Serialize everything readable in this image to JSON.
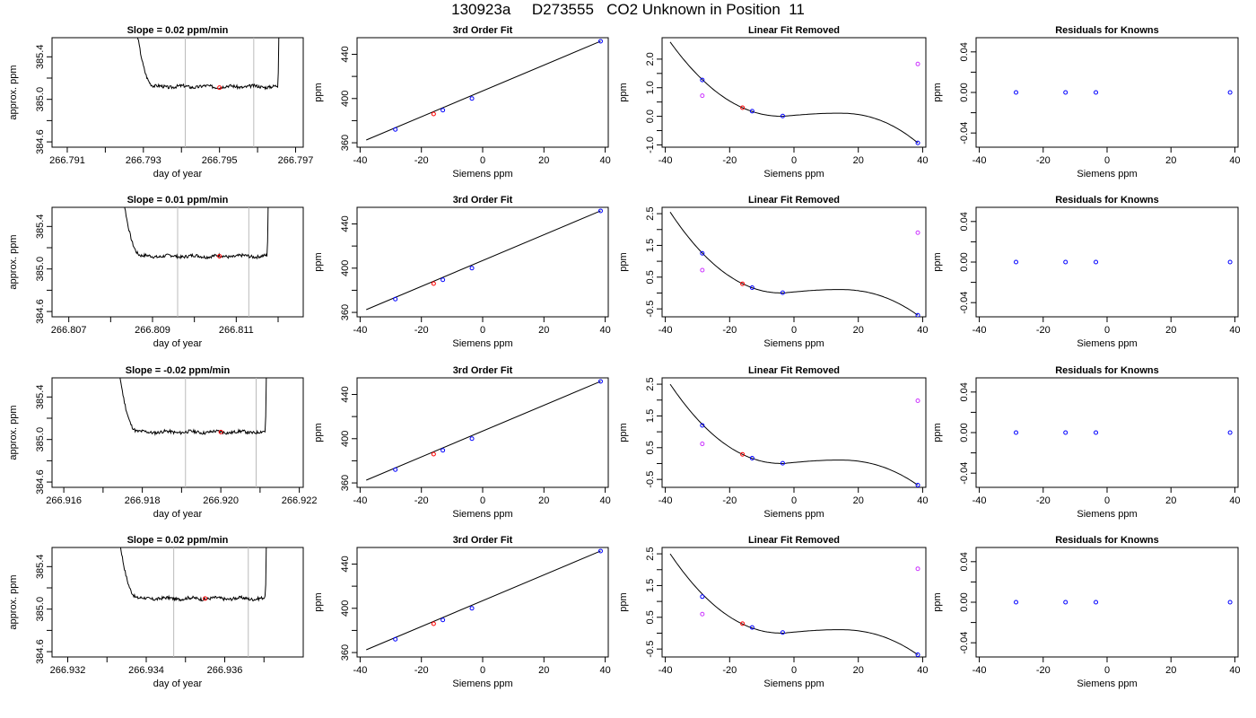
{
  "page_title": "130923a     D273555   CO2 Unknown in Position  11",
  "colors": {
    "trace": "#000000",
    "known": "#0000ff",
    "unknown": "#ff0000",
    "excluded": "#cc33ff",
    "interval_line": "#bbbbbb"
  },
  "chart_data": [
    {
      "type": "line",
      "row": 0,
      "col": 0,
      "title": "Slope =  0.02  ppm/min",
      "xlabel": "day of year",
      "ylabel": "approx. ppm",
      "xlim": [
        266.7906,
        266.7972
      ],
      "ylim": [
        384.55,
        385.58
      ],
      "xticks": [
        266.791,
        266.792,
        266.793,
        266.794,
        266.795,
        266.796,
        266.797
      ],
      "xtick_labels": [
        "266.791",
        "",
        "266.793",
        "",
        "266.795",
        "",
        "266.797"
      ],
      "yticks": [
        384.6,
        384.8,
        385.0,
        385.2,
        385.4
      ],
      "ytick_labels": [
        "384.6",
        "",
        "385.0",
        "",
        "385.4"
      ],
      "trace": {
        "x0": 266.7926,
        "x1": 266.7966,
        "plateau": 385.12,
        "seed": 3
      },
      "vlines": [
        266.7941,
        266.7959
      ],
      "unknown_point": {
        "x": 266.795,
        "y": 385.11
      }
    },
    {
      "type": "scatter",
      "row": 0,
      "col": 1,
      "title": "3rd Order Fit",
      "xlabel": "Siemens ppm",
      "ylabel": "ppm",
      "xlim": [
        -41,
        41
      ],
      "ylim": [
        356,
        455
      ],
      "xticks": [
        -40,
        -20,
        0,
        20,
        40
      ],
      "xtick_labels": [
        "-40",
        "-20",
        "0",
        "20",
        "40"
      ],
      "yticks": [
        360,
        380,
        400,
        420,
        440
      ],
      "ytick_labels": [
        "360",
        "",
        "400",
        "",
        "440"
      ],
      "fit_line": {
        "x0": -38,
        "y0": 362.5,
        "x1": 38.5,
        "y1": 451.8
      },
      "points": [
        {
          "x": -28.5,
          "y": 372.0,
          "role": "known"
        },
        {
          "x": -16,
          "y": 386.0,
          "role": "unknown"
        },
        {
          "x": -13,
          "y": 389.5,
          "role": "known"
        },
        {
          "x": -3.5,
          "y": 400.0,
          "role": "known"
        },
        {
          "x": 38.5,
          "y": 451.8,
          "role": "known"
        }
      ]
    },
    {
      "type": "scatter",
      "row": 0,
      "col": 2,
      "title": "Linear Fit Removed",
      "xlabel": "Siemens ppm",
      "ylabel": "ppm",
      "xlim": [
        -41,
        41
      ],
      "ylim": [
        -1.08,
        2.75
      ],
      "xticks": [
        -40,
        -20,
        0,
        20,
        40
      ],
      "xtick_labels": [
        "-40",
        "-20",
        "0",
        "20",
        "40"
      ],
      "yticks": [
        -1.0,
        -0.5,
        0.0,
        0.5,
        1.0,
        1.5,
        2.0
      ],
      "ytick_labels": [
        "-1.0",
        "0.0",
        "1.0",
        "2.0"
      ],
      "ytick_label_values": [
        -1.0,
        0.0,
        1.0,
        2.0
      ],
      "curve": {
        "x0": -38.5,
        "x1": 38.5,
        "coef": [
          0.0,
          0.0006,
          -0.0015,
          -5e-05
        ],
        "y_at_m38": 2.6
      },
      "points": [
        {
          "x": -28.5,
          "y": 1.27,
          "role": "known"
        },
        {
          "x": -28.5,
          "y": 0.72,
          "role": "excluded"
        },
        {
          "x": -16,
          "y": 0.3,
          "role": "unknown"
        },
        {
          "x": -13,
          "y": 0.18,
          "role": "known"
        },
        {
          "x": -3.5,
          "y": 0.01,
          "role": "known"
        },
        {
          "x": 38.5,
          "y": -0.93,
          "role": "known"
        },
        {
          "x": 38.5,
          "y": 1.83,
          "role": "excluded"
        }
      ]
    },
    {
      "type": "scatter",
      "row": 0,
      "col": 3,
      "title": "Residuals for Knowns",
      "xlabel": "Siemens ppm",
      "ylabel": "ppm",
      "xlim": [
        -41,
        41
      ],
      "ylim": [
        -0.054,
        0.054
      ],
      "xticks": [
        -40,
        -20,
        0,
        20,
        40
      ],
      "xtick_labels": [
        "-40",
        "-20",
        "0",
        "20",
        "40"
      ],
      "yticks": [
        -0.04,
        -0.02,
        0.0,
        0.02,
        0.04
      ],
      "ytick_labels": [
        "-0.04",
        "",
        "0.00",
        "",
        "0.04"
      ],
      "points": [
        {
          "x": -28.5,
          "y": 0,
          "role": "known"
        },
        {
          "x": -13,
          "y": 0,
          "role": "known"
        },
        {
          "x": -3.5,
          "y": 0,
          "role": "known"
        },
        {
          "x": 38.5,
          "y": 0,
          "role": "known"
        }
      ]
    },
    {
      "type": "line",
      "row": 1,
      "col": 0,
      "title": "Slope =  0.01  ppm/min",
      "xlabel": "day of year",
      "ylabel": "approx. ppm",
      "xlim": [
        266.8066,
        266.8126
      ],
      "ylim": [
        384.55,
        385.58
      ],
      "xticks": [
        266.807,
        266.808,
        266.809,
        266.81,
        266.811,
        266.812
      ],
      "xtick_labels": [
        "266.807",
        "",
        "266.809",
        "",
        "266.811",
        ""
      ],
      "yticks": [
        384.6,
        384.8,
        385.0,
        385.2,
        385.4
      ],
      "ytick_labels": [
        "384.6",
        "",
        "385.0",
        "",
        "385.4"
      ],
      "trace": {
        "x0": 266.8081,
        "x1": 266.8118,
        "plateau": 385.12,
        "seed": 7
      },
      "vlines": [
        266.8096,
        266.8113
      ],
      "unknown_point": {
        "x": 266.8106,
        "y": 385.12
      }
    },
    {
      "type": "scatter",
      "row": 1,
      "col": 1,
      "title": "3rd Order Fit",
      "xlabel": "Siemens ppm",
      "ylabel": "ppm",
      "xlim": [
        -41,
        41
      ],
      "ylim": [
        356,
        455
      ],
      "xticks": [
        -40,
        -20,
        0,
        20,
        40
      ],
      "xtick_labels": [
        "-40",
        "-20",
        "0",
        "20",
        "40"
      ],
      "yticks": [
        360,
        380,
        400,
        420,
        440
      ],
      "ytick_labels": [
        "360",
        "",
        "400",
        "",
        "440"
      ],
      "fit_line": {
        "x0": -38,
        "y0": 362.5,
        "x1": 38.5,
        "y1": 451.8
      },
      "points": [
        {
          "x": -28.5,
          "y": 372.0,
          "role": "known"
        },
        {
          "x": -16,
          "y": 386.0,
          "role": "unknown"
        },
        {
          "x": -13,
          "y": 389.5,
          "role": "known"
        },
        {
          "x": -3.5,
          "y": 400.0,
          "role": "known"
        },
        {
          "x": 38.5,
          "y": 451.8,
          "role": "known"
        }
      ]
    },
    {
      "type": "scatter",
      "row": 1,
      "col": 2,
      "title": "Linear Fit Removed",
      "xlabel": "Siemens ppm",
      "ylabel": "ppm",
      "xlim": [
        -41,
        41
      ],
      "ylim": [
        -0.75,
        2.7
      ],
      "xticks": [
        -40,
        -20,
        0,
        20,
        40
      ],
      "xtick_labels": [
        "-40",
        "-20",
        "0",
        "20",
        "40"
      ],
      "yticks": [
        -0.5,
        0.0,
        0.5,
        1.0,
        1.5,
        2.0,
        2.5
      ],
      "ytick_labels": [
        "-0.5",
        "0.5",
        "1.5",
        "2.5"
      ],
      "ytick_label_values": [
        -0.5,
        0.5,
        1.5,
        2.5
      ],
      "curve": {
        "x0": -38.5,
        "x1": 38.5,
        "y_at_m38": 2.55
      },
      "points": [
        {
          "x": -28.5,
          "y": 1.25,
          "role": "known"
        },
        {
          "x": -28.5,
          "y": 0.72,
          "role": "excluded"
        },
        {
          "x": -16,
          "y": 0.29,
          "role": "unknown"
        },
        {
          "x": -13,
          "y": 0.17,
          "role": "known"
        },
        {
          "x": -3.5,
          "y": 0.01,
          "role": "known"
        },
        {
          "x": 38.5,
          "y": -0.7,
          "role": "known"
        },
        {
          "x": 38.5,
          "y": 1.9,
          "role": "excluded"
        }
      ]
    },
    {
      "type": "scatter",
      "row": 1,
      "col": 3,
      "title": "Residuals for Knowns",
      "xlabel": "Siemens ppm",
      "ylabel": "ppm",
      "xlim": [
        -41,
        41
      ],
      "ylim": [
        -0.054,
        0.054
      ],
      "xticks": [
        -40,
        -20,
        0,
        20,
        40
      ],
      "xtick_labels": [
        "-40",
        "-20",
        "0",
        "20",
        "40"
      ],
      "yticks": [
        -0.04,
        -0.02,
        0.0,
        0.02,
        0.04
      ],
      "ytick_labels": [
        "-0.04",
        "",
        "0.00",
        "",
        "0.04"
      ],
      "points": [
        {
          "x": -28.5,
          "y": 0,
          "role": "known"
        },
        {
          "x": -13,
          "y": 0,
          "role": "known"
        },
        {
          "x": -3.5,
          "y": 0,
          "role": "known"
        },
        {
          "x": 38.5,
          "y": 0,
          "role": "known"
        }
      ]
    },
    {
      "type": "line",
      "row": 2,
      "col": 0,
      "title": "Slope =  -0.02  ppm/min",
      "xlabel": "day of year",
      "ylabel": "approx. ppm",
      "xlim": [
        266.9157,
        266.9221
      ],
      "ylim": [
        384.55,
        385.58
      ],
      "xticks": [
        266.916,
        266.917,
        266.918,
        266.919,
        266.92,
        266.921,
        266.922
      ],
      "xtick_labels": [
        "266.916",
        "",
        "266.918",
        "",
        "266.920",
        "",
        "266.922"
      ],
      "yticks": [
        384.6,
        384.8,
        385.0,
        385.2,
        385.4
      ],
      "ytick_labels": [
        "384.6",
        "",
        "385.0",
        "",
        "385.4"
      ],
      "trace": {
        "x0": 266.9172,
        "x1": 266.9212,
        "plateau": 385.07,
        "seed": 11
      },
      "vlines": [
        266.9191,
        266.9209
      ],
      "unknown_point": {
        "x": 266.92,
        "y": 385.07
      }
    },
    {
      "type": "scatter",
      "row": 2,
      "col": 1,
      "title": "3rd Order Fit",
      "xlabel": "Siemens ppm",
      "ylabel": "ppm",
      "xlim": [
        -41,
        41
      ],
      "ylim": [
        356,
        455
      ],
      "xticks": [
        -40,
        -20,
        0,
        20,
        40
      ],
      "xtick_labels": [
        "-40",
        "-20",
        "0",
        "20",
        "40"
      ],
      "yticks": [
        360,
        380,
        400,
        420,
        440
      ],
      "ytick_labels": [
        "360",
        "",
        "400",
        "",
        "440"
      ],
      "fit_line": {
        "x0": -38,
        "y0": 362.5,
        "x1": 38.5,
        "y1": 451.8
      },
      "points": [
        {
          "x": -28.5,
          "y": 372.0,
          "role": "known"
        },
        {
          "x": -16,
          "y": 386.0,
          "role": "unknown"
        },
        {
          "x": -13,
          "y": 389.5,
          "role": "known"
        },
        {
          "x": -3.5,
          "y": 400.0,
          "role": "known"
        },
        {
          "x": 38.5,
          "y": 451.8,
          "role": "known"
        }
      ]
    },
    {
      "type": "scatter",
      "row": 2,
      "col": 2,
      "title": "Linear Fit Removed",
      "xlabel": "Siemens ppm",
      "ylabel": "ppm",
      "xlim": [
        -41,
        41
      ],
      "ylim": [
        -0.75,
        2.7
      ],
      "xticks": [
        -40,
        -20,
        0,
        20,
        40
      ],
      "xtick_labels": [
        "-40",
        "-20",
        "0",
        "20",
        "40"
      ],
      "yticks": [
        -0.5,
        0.0,
        0.5,
        1.0,
        1.5,
        2.0,
        2.5
      ],
      "ytick_labels": [
        "-0.5",
        "0.5",
        "1.5",
        "2.5"
      ],
      "ytick_label_values": [
        -0.5,
        0.5,
        1.5,
        2.5
      ],
      "curve": {
        "x0": -38.5,
        "x1": 38.5,
        "y_at_m38": 2.5
      },
      "points": [
        {
          "x": -28.5,
          "y": 1.2,
          "role": "known"
        },
        {
          "x": -28.5,
          "y": 0.62,
          "role": "excluded"
        },
        {
          "x": -16,
          "y": 0.29,
          "role": "unknown"
        },
        {
          "x": -13,
          "y": 0.17,
          "role": "known"
        },
        {
          "x": -3.5,
          "y": 0.01,
          "role": "known"
        },
        {
          "x": 38.5,
          "y": -0.68,
          "role": "known"
        },
        {
          "x": 38.5,
          "y": 1.98,
          "role": "excluded"
        }
      ]
    },
    {
      "type": "scatter",
      "row": 2,
      "col": 3,
      "title": "Residuals for Knowns",
      "xlabel": "Siemens ppm",
      "ylabel": "ppm",
      "xlim": [
        -41,
        41
      ],
      "ylim": [
        -0.054,
        0.054
      ],
      "xticks": [
        -40,
        -20,
        0,
        20,
        40
      ],
      "xtick_labels": [
        "-40",
        "-20",
        "0",
        "20",
        "40"
      ],
      "yticks": [
        -0.04,
        -0.02,
        0.0,
        0.02,
        0.04
      ],
      "ytick_labels": [
        "-0.04",
        "",
        "0.00",
        "",
        "0.04"
      ],
      "points": [
        {
          "x": -28.5,
          "y": 0,
          "role": "known"
        },
        {
          "x": -13,
          "y": 0,
          "role": "known"
        },
        {
          "x": -3.5,
          "y": 0,
          "role": "known"
        },
        {
          "x": 38.5,
          "y": 0,
          "role": "known"
        }
      ]
    },
    {
      "type": "line",
      "row": 3,
      "col": 0,
      "title": "Slope =  0.02  ppm/min",
      "xlabel": "day of year",
      "ylabel": "approx. ppm",
      "xlim": [
        266.9316,
        266.938
      ],
      "ylim": [
        384.55,
        385.58
      ],
      "xticks": [
        266.932,
        266.933,
        266.934,
        266.935,
        266.936,
        266.937
      ],
      "xtick_labels": [
        "266.932",
        "",
        "266.934",
        "",
        "266.936",
        ""
      ],
      "yticks": [
        384.6,
        384.8,
        385.0,
        385.2,
        385.4
      ],
      "ytick_labels": [
        "384.6",
        "",
        "385.0",
        "",
        "385.4"
      ],
      "trace": {
        "x0": 266.9331,
        "x1": 266.9371,
        "plateau": 385.1,
        "seed": 17
      },
      "vlines": [
        266.9347,
        266.9366
      ],
      "unknown_point": {
        "x": 266.9355,
        "y": 385.1
      }
    },
    {
      "type": "scatter",
      "row": 3,
      "col": 1,
      "title": "3rd Order Fit",
      "xlabel": "Siemens ppm",
      "ylabel": "ppm",
      "xlim": [
        -41,
        41
      ],
      "ylim": [
        356,
        455
      ],
      "xticks": [
        -40,
        -20,
        0,
        20,
        40
      ],
      "xtick_labels": [
        "-40",
        "-20",
        "0",
        "20",
        "40"
      ],
      "yticks": [
        360,
        380,
        400,
        420,
        440
      ],
      "ytick_labels": [
        "360",
        "",
        "400",
        "",
        "440"
      ],
      "fit_line": {
        "x0": -38,
        "y0": 362.5,
        "x1": 38.5,
        "y1": 451.8
      },
      "points": [
        {
          "x": -28.5,
          "y": 372.0,
          "role": "known"
        },
        {
          "x": -16,
          "y": 386.0,
          "role": "unknown"
        },
        {
          "x": -13,
          "y": 389.5,
          "role": "known"
        },
        {
          "x": -3.5,
          "y": 400.0,
          "role": "known"
        },
        {
          "x": 38.5,
          "y": 451.8,
          "role": "known"
        }
      ]
    },
    {
      "type": "scatter",
      "row": 3,
      "col": 2,
      "title": "Linear Fit Removed",
      "xlabel": "Siemens ppm",
      "ylabel": "ppm",
      "xlim": [
        -41,
        41
      ],
      "ylim": [
        -0.75,
        2.7
      ],
      "xticks": [
        -40,
        -20,
        0,
        20,
        40
      ],
      "xtick_labels": [
        "-40",
        "-20",
        "0",
        "20",
        "40"
      ],
      "yticks": [
        -0.5,
        0.0,
        0.5,
        1.0,
        1.5,
        2.0,
        2.5
      ],
      "ytick_labels": [
        "-0.5",
        "0.5",
        "1.5",
        "2.5"
      ],
      "ytick_label_values": [
        -0.5,
        0.5,
        1.5,
        2.5
      ],
      "curve": {
        "x0": -38.5,
        "x1": 38.5,
        "y_at_m38": 2.5
      },
      "points": [
        {
          "x": -28.5,
          "y": 1.15,
          "role": "known"
        },
        {
          "x": -28.5,
          "y": 0.6,
          "role": "excluded"
        },
        {
          "x": -16,
          "y": 0.3,
          "role": "unknown"
        },
        {
          "x": -13,
          "y": 0.18,
          "role": "known"
        },
        {
          "x": -3.5,
          "y": 0.02,
          "role": "known"
        },
        {
          "x": 38.5,
          "y": -0.68,
          "role": "known"
        },
        {
          "x": 38.5,
          "y": 2.03,
          "role": "excluded"
        }
      ]
    },
    {
      "type": "scatter",
      "row": 3,
      "col": 3,
      "title": "Residuals for Knowns",
      "xlabel": "Siemens ppm",
      "ylabel": "ppm",
      "xlim": [
        -41,
        41
      ],
      "ylim": [
        -0.054,
        0.054
      ],
      "xticks": [
        -40,
        -20,
        0,
        20,
        40
      ],
      "xtick_labels": [
        "-40",
        "-20",
        "0",
        "20",
        "40"
      ],
      "yticks": [
        -0.04,
        -0.02,
        0.0,
        0.02,
        0.04
      ],
      "ytick_labels": [
        "-0.04",
        "",
        "0.00",
        "",
        "0.04"
      ],
      "points": [
        {
          "x": -28.5,
          "y": 0,
          "role": "known"
        },
        {
          "x": -13,
          "y": 0,
          "role": "known"
        },
        {
          "x": -3.5,
          "y": 0,
          "role": "known"
        },
        {
          "x": 38.5,
          "y": 0,
          "role": "known"
        }
      ]
    }
  ]
}
